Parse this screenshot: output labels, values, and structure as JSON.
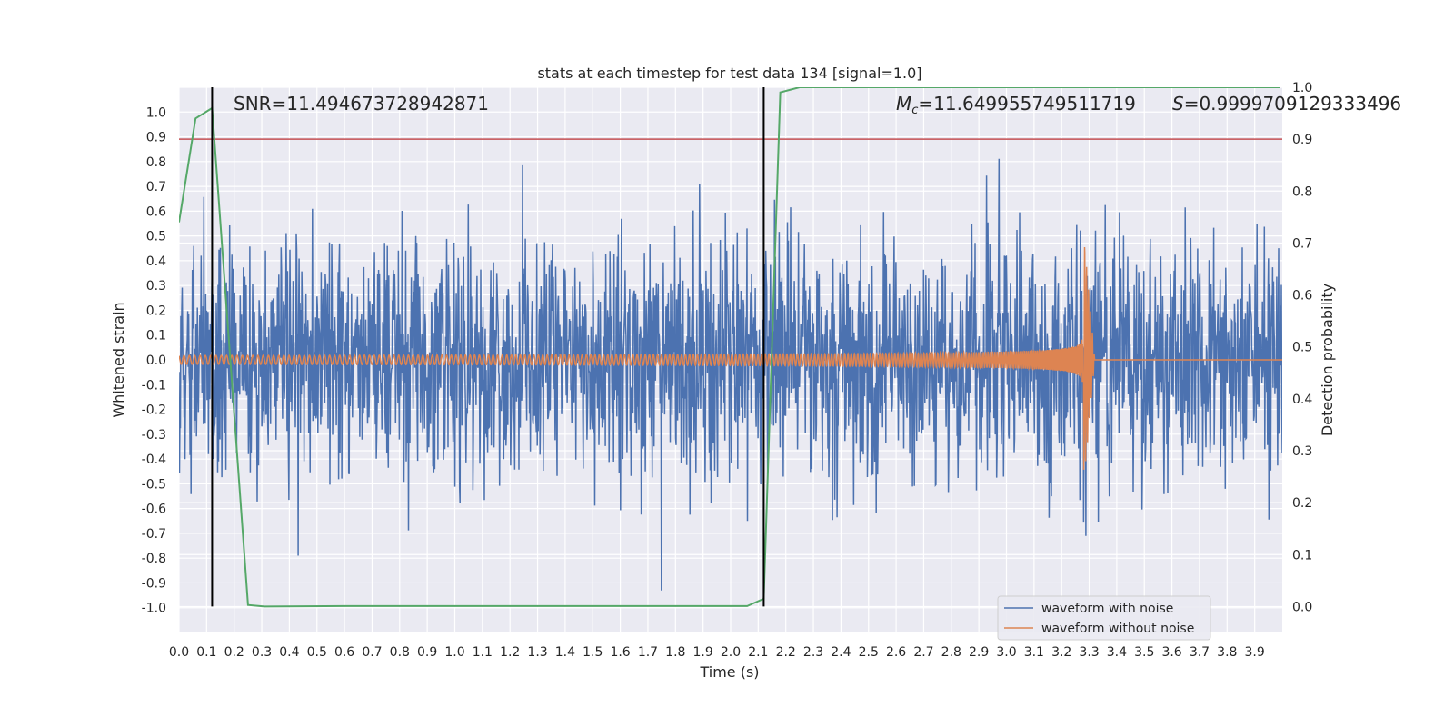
{
  "chart_data": {
    "type": "line",
    "title": "stats at each timestep for test data 134 [signal=1.0]",
    "xlabel": "Time (s)",
    "ylabel_left": "Whitened strain",
    "ylabel_right": "Detection probability",
    "xlim": [
      0.0,
      4.0
    ],
    "ylim_left": [
      -1.1,
      1.1
    ],
    "ylim_right": [
      -0.05,
      1.0
    ],
    "x_ticks": [
      "0.0",
      "0.1",
      "0.2",
      "0.3",
      "0.4",
      "0.5",
      "0.6",
      "0.7",
      "0.8",
      "0.9",
      "1.0",
      "1.1",
      "1.2",
      "1.3",
      "1.4",
      "1.5",
      "1.6",
      "1.7",
      "1.8",
      "1.9",
      "2.0",
      "2.1",
      "2.2",
      "2.3",
      "2.4",
      "2.5",
      "2.6",
      "2.7",
      "2.8",
      "2.9",
      "3.0",
      "3.1",
      "3.2",
      "3.3",
      "3.4",
      "3.5",
      "3.6",
      "3.7",
      "3.8",
      "3.9"
    ],
    "y_ticks_left": [
      "1.0",
      "0.9",
      "0.8",
      "0.7",
      "0.6",
      "0.5",
      "0.4",
      "0.3",
      "0.2",
      "0.1",
      "0.0",
      "-0.1",
      "-0.2",
      "-0.3",
      "-0.4",
      "-0.5",
      "-0.6",
      "-0.7",
      "-0.8",
      "-0.9",
      "-1.0"
    ],
    "y_ticks_right": [
      "1.0",
      "0.9",
      "0.8",
      "0.7",
      "0.6",
      "0.5",
      "0.4",
      "0.3",
      "0.2",
      "0.1",
      "0.0"
    ],
    "grid": true,
    "legend_position": "lower-right",
    "series": [
      {
        "name": "waveform with noise",
        "color": "#4c72b0",
        "axis": "left",
        "description_values": {
          "amplitude_typical": 0.45,
          "amplitude_peak": 1.0,
          "x_range": [
            0.0,
            4.0
          ]
        }
      },
      {
        "name": "waveform without noise",
        "color": "#dd8452",
        "axis": "left",
        "description_values": {
          "chirp_start_amplitude": 0.02,
          "chirp_peak_time": 3.28,
          "chirp_peak_amplitude": 0.47,
          "chirp_min_amplitude": -0.51,
          "merger_end_time": 3.32
        }
      }
    ],
    "detection_probability": {
      "color": "#55a868",
      "axis": "right",
      "x": [
        0.0,
        0.06,
        0.12,
        0.25,
        0.31,
        0.6,
        2.06,
        2.12,
        2.18,
        2.25,
        3.99
      ],
      "y": [
        0.74,
        0.94,
        0.96,
        0.003,
        0.0,
        0.001,
        0.001,
        0.015,
        0.99,
        1.0,
        1.0
      ]
    },
    "threshold_line": {
      "color": "#c44e52",
      "axis": "right",
      "value": 0.9
    },
    "vertical_lines": {
      "color": "#000000",
      "x": [
        0.12,
        2.12
      ]
    },
    "annotations": {
      "snr": "SNR=11.494673728942871",
      "mc": "=11.649955749511719",
      "mc_symbol": "M",
      "mc_subscript": "c",
      "s": "=0.9999709129333496",
      "s_symbol": "S"
    }
  }
}
